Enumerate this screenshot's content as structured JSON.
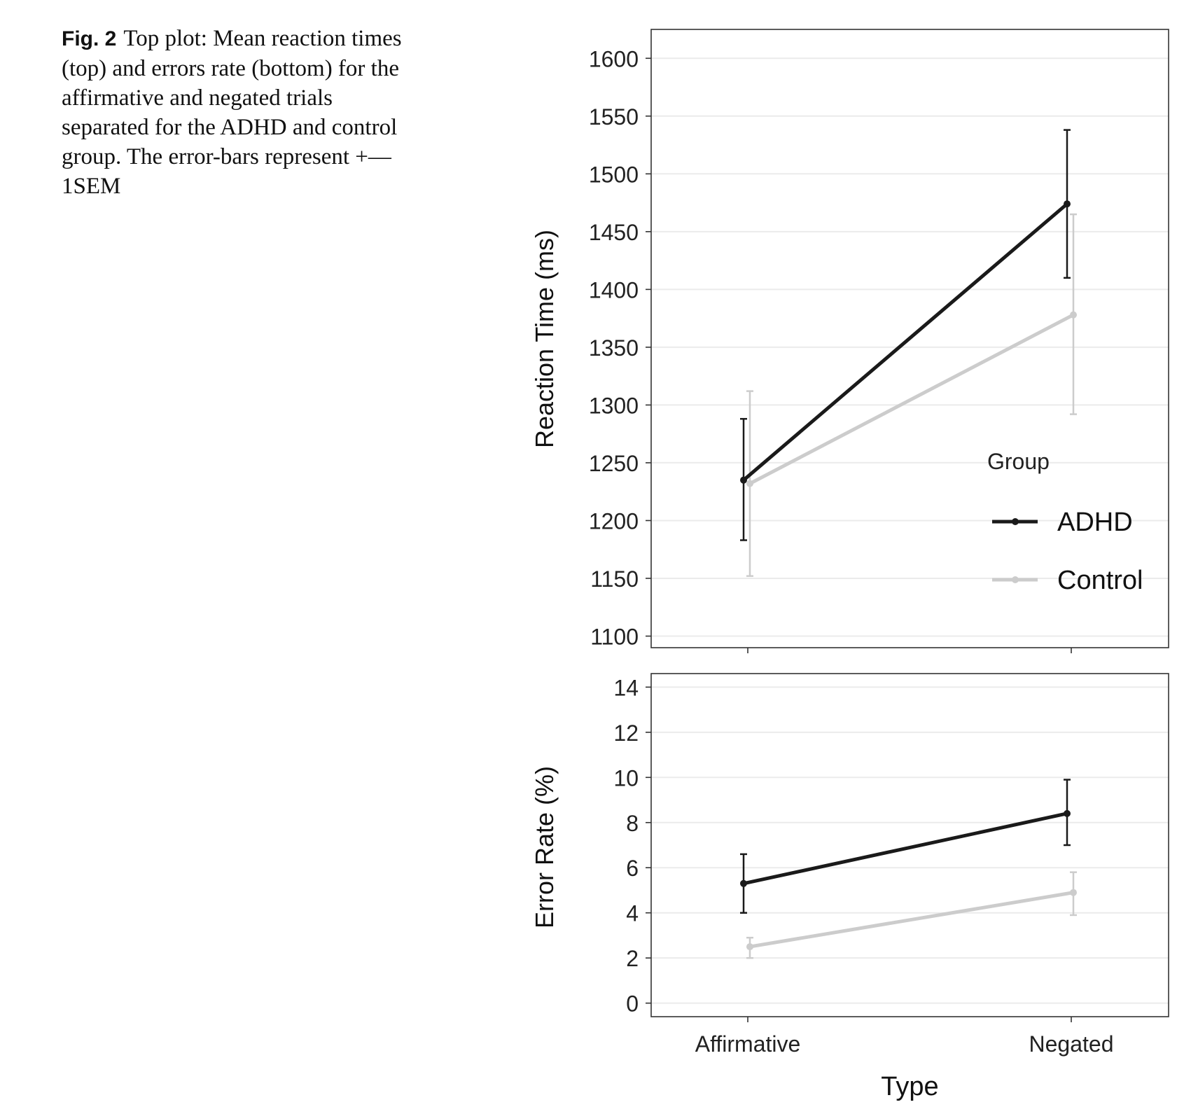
{
  "caption": {
    "label": "Fig. 2",
    "text": "Top plot: Mean reaction times (top) and errors rate (bottom) for the affirmative and negated trials separated for the ADHD and control group. The error-bars represent +—1SEM"
  },
  "chart_data": [
    {
      "type": "line",
      "panel": "top",
      "ylabel": "Reaction Time (ms)",
      "xlabel": "",
      "categories": [
        "Affirmative",
        "Negated"
      ],
      "ylim": [
        1090,
        1625
      ],
      "yticks": [
        1100,
        1150,
        1200,
        1250,
        1300,
        1350,
        1400,
        1450,
        1500,
        1550,
        1600
      ],
      "grid": true,
      "legend": {
        "title": "Group",
        "placement": "right"
      },
      "series": [
        {
          "name": "ADHD",
          "color": "#1a1a1a",
          "values": [
            1235,
            1474
          ],
          "err_low": [
            1183,
            1410
          ],
          "err_high": [
            1288,
            1538
          ]
        },
        {
          "name": "Control",
          "color": "#cccccc",
          "values": [
            1232,
            1378
          ],
          "err_low": [
            1152,
            1292
          ],
          "err_high": [
            1312,
            1465
          ]
        }
      ]
    },
    {
      "type": "line",
      "panel": "bottom",
      "ylabel": "Error Rate (%)",
      "xlabel": "Type",
      "categories": [
        "Affirmative",
        "Negated"
      ],
      "ylim": [
        -0.6,
        14.6
      ],
      "yticks": [
        0,
        2,
        4,
        6,
        8,
        10,
        12,
        14
      ],
      "grid": true,
      "series": [
        {
          "name": "ADHD",
          "color": "#1a1a1a",
          "values": [
            5.3,
            8.4
          ],
          "err_low": [
            4.0,
            7.0
          ],
          "err_high": [
            6.6,
            9.9
          ]
        },
        {
          "name": "Control",
          "color": "#cccccc",
          "values": [
            2.5,
            4.9
          ],
          "err_low": [
            2.0,
            3.9
          ],
          "err_high": [
            2.9,
            5.8
          ]
        }
      ]
    }
  ]
}
